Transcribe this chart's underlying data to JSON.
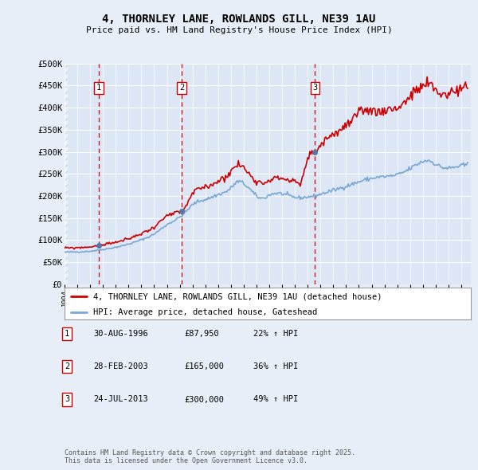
{
  "title": "4, THORNLEY LANE, ROWLANDS GILL, NE39 1AU",
  "subtitle": "Price paid vs. HM Land Registry's House Price Index (HPI)",
  "bg_color": "#e8eef8",
  "plot_bg": "#dce6f5",
  "grid_color": "#ffffff",
  "hpi_color": "#7aa7d4",
  "price_color": "#cc0000",
  "vline_color": "#cc0000",
  "ylim": [
    0,
    500000
  ],
  "yticks": [
    0,
    50000,
    100000,
    150000,
    200000,
    250000,
    300000,
    350000,
    400000,
    450000,
    500000
  ],
  "ytick_labels": [
    "£0",
    "£50K",
    "£100K",
    "£150K",
    "£200K",
    "£250K",
    "£300K",
    "£350K",
    "£400K",
    "£450K",
    "£500K"
  ],
  "sale_dates": [
    "1996-08-30",
    "2003-02-28",
    "2013-07-24"
  ],
  "sale_prices": [
    87950,
    165000,
    300000
  ],
  "sale_labels": [
    "1",
    "2",
    "3"
  ],
  "sale_label_1": "30-AUG-1996",
  "sale_price_1": "£87,950",
  "sale_hpi_1": "22% ↑ HPI",
  "sale_label_2": "28-FEB-2003",
  "sale_price_2": "£165,000",
  "sale_hpi_2": "36% ↑ HPI",
  "sale_label_3": "24-JUL-2013",
  "sale_price_3": "£300,000",
  "sale_hpi_3": "49% ↑ HPI",
  "legend_line1": "4, THORNLEY LANE, ROWLANDS GILL, NE39 1AU (detached house)",
  "legend_line2": "HPI: Average price, detached house, Gateshead",
  "footnote": "Contains HM Land Registry data © Crown copyright and database right 2025.\nThis data is licensed under the Open Government Licence v3.0.",
  "xstart": 1994.0,
  "xend": 2025.75
}
